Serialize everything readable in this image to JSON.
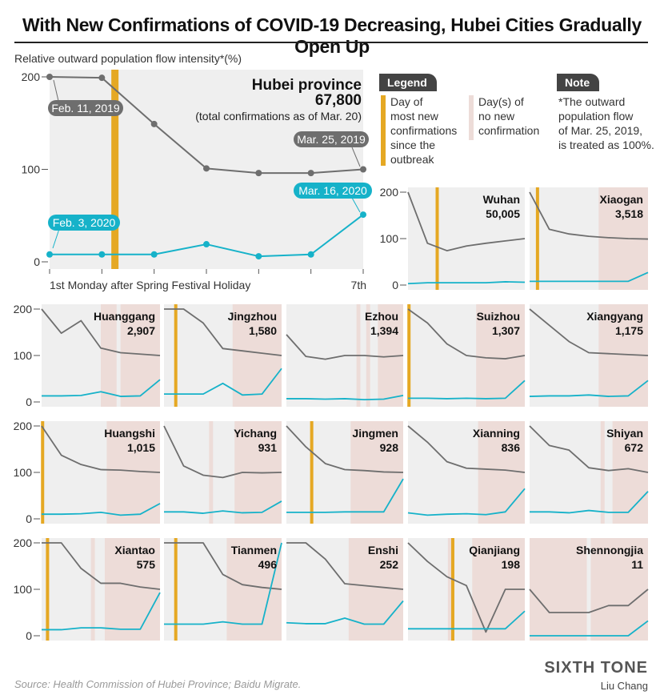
{
  "title": "With New Confirmations of COVID-19 Decreasing, Hubei Cities Gradually Open Up",
  "subtitle": "Relative outward population flow intensity*(%)",
  "legend": {
    "label": "Legend",
    "peak": "Day of\nmost new\nconfirmations\nsince the\noutbreak",
    "nonew": "Day(s) of\nno new\nconfirmation"
  },
  "note": {
    "label": "Note",
    "text": "*The outward\npopulation flow\nof Mar. 25, 2019,\nis treated as 100%."
  },
  "source": "Source: Health Commission of Hubei Province; Baidu Migrate.",
  "brand": "SIXTH TONE",
  "author": "Liu Chang",
  "colors": {
    "y2019": "#6e6e6e",
    "y2020": "#16b2c9",
    "peak": "#e5a823",
    "nonew": "#eddcd8",
    "panel": "#efefef"
  },
  "chart_data": [
    {
      "type": "line",
      "name": "Hubei province",
      "value": "67,800",
      "caption": "(total confirmations as of Mar. 20)",
      "x": [
        1,
        2,
        3,
        4,
        5,
        6,
        7
      ],
      "xlabel_start": "1st Monday after Spring Festival Holiday",
      "xlabel_end": "7th",
      "yticks": [
        "0",
        "100",
        "200"
      ],
      "ylim": [
        0,
        200
      ],
      "annotations": [
        {
          "text": "Feb. 11, 2019",
          "series": "2019",
          "x": 1
        },
        {
          "text": "Mar. 25, 2019",
          "series": "2019",
          "x": 7
        },
        {
          "text": "Feb. 3, 2020",
          "series": "2020",
          "x": 1
        },
        {
          "text": "Mar. 16, 2020",
          "series": "2020",
          "x": 7
        }
      ],
      "peak": 2.25,
      "nonew": [],
      "series": [
        {
          "values": [
            200,
            199,
            149,
            101,
            96,
            96,
            100
          ]
        },
        {
          "values": [
            8,
            8,
            8,
            19,
            6,
            8,
            51
          ]
        }
      ]
    },
    {
      "type": "line",
      "name": "Wuhan",
      "value": "50,005",
      "x": [
        1,
        2,
        3,
        4,
        5,
        6,
        7
      ],
      "yticks": [
        "0",
        "100",
        "200"
      ],
      "ylim": [
        0,
        200
      ],
      "peak": 2.5,
      "nonew": [],
      "series": [
        {
          "values": [
            200,
            90,
            74,
            84,
            90,
            95,
            100
          ]
        },
        {
          "values": [
            3,
            5,
            5,
            5,
            5,
            7,
            6
          ]
        }
      ]
    },
    {
      "type": "line",
      "name": "Xiaogan",
      "value": "3,518",
      "x": [
        1,
        2,
        3,
        4,
        5,
        6,
        7
      ],
      "ylim": [
        0,
        200
      ],
      "peak": 1.4,
      "nonew": [
        [
          4.5,
          7
        ]
      ],
      "series": [
        {
          "values": [
            200,
            120,
            110,
            105,
            102,
            100,
            99
          ]
        },
        {
          "values": [
            8,
            8,
            8,
            8,
            8,
            8,
            27
          ]
        }
      ]
    },
    {
      "type": "line",
      "name": "Huanggang",
      "value": "2,907",
      "x": [
        1,
        2,
        3,
        4,
        5,
        6,
        7
      ],
      "yticks": [
        "0",
        "100",
        "200"
      ],
      "ylim": [
        0,
        200
      ],
      "peak": null,
      "nonew": [
        [
          4,
          4.8
        ],
        [
          5,
          7
        ]
      ],
      "series": [
        {
          "values": [
            200,
            148,
            175,
            116,
            106,
            103,
            100
          ]
        },
        {
          "values": [
            13,
            13,
            14,
            22,
            12,
            13,
            48
          ]
        }
      ]
    },
    {
      "type": "line",
      "name": "Jingzhou",
      "value": "1,580",
      "x": [
        1,
        2,
        3,
        4,
        5,
        6,
        7
      ],
      "ylim": [
        0,
        200
      ],
      "peak": 1.6,
      "nonew": [
        [
          4.5,
          7
        ]
      ],
      "series": [
        {
          "values": [
            200,
            200,
            170,
            115,
            110,
            105,
            100
          ]
        },
        {
          "values": [
            17,
            17,
            17,
            40,
            15,
            17,
            72
          ]
        }
      ]
    },
    {
      "type": "line",
      "name": "Ezhou",
      "value": "1,394",
      "x": [
        1,
        2,
        3,
        4,
        5,
        6,
        7
      ],
      "ylim": [
        0,
        200
      ],
      "peak": null,
      "nonew": [
        [
          4.6,
          4.8
        ],
        [
          5.1,
          5.3
        ],
        [
          5.7,
          7
        ]
      ],
      "series": [
        {
          "values": [
            145,
            98,
            92,
            100,
            100,
            97,
            100
          ]
        },
        {
          "values": [
            7,
            7,
            6,
            7,
            5,
            6,
            14
          ]
        }
      ]
    },
    {
      "type": "line",
      "name": "Suizhou",
      "value": "1,307",
      "x": [
        1,
        2,
        3,
        4,
        5,
        6,
        7
      ],
      "ylim": [
        0,
        200
      ],
      "peak": 1.05,
      "nonew": [
        [
          4.5,
          7
        ]
      ],
      "series": [
        {
          "values": [
            200,
            170,
            125,
            100,
            95,
            93,
            100
          ]
        },
        {
          "values": [
            8,
            8,
            7,
            8,
            7,
            8,
            46
          ]
        }
      ]
    },
    {
      "type": "line",
      "name": "Xiangyang",
      "value": "1,175",
      "x": [
        1,
        2,
        3,
        4,
        5,
        6,
        7
      ],
      "ylim": [
        0,
        200
      ],
      "peak": null,
      "nonew": [
        [
          4.5,
          7
        ]
      ],
      "series": [
        {
          "values": [
            200,
            165,
            130,
            106,
            104,
            102,
            100
          ]
        },
        {
          "values": [
            12,
            13,
            13,
            15,
            12,
            13,
            46
          ]
        }
      ]
    },
    {
      "type": "line",
      "name": "Huangshi",
      "value": "1,015",
      "x": [
        1,
        2,
        3,
        4,
        5,
        6,
        7
      ],
      "yticks": [
        "0",
        "100",
        "200"
      ],
      "ylim": [
        0,
        200
      ],
      "peak": 1.05,
      "nonew": [
        [
          4.3,
          7
        ]
      ],
      "series": [
        {
          "values": [
            200,
            137,
            117,
            106,
            105,
            102,
            100
          ]
        },
        {
          "values": [
            10,
            10,
            11,
            14,
            8,
            10,
            33
          ]
        }
      ]
    },
    {
      "type": "line",
      "name": "Yichang",
      "value": "931",
      "x": [
        1,
        2,
        3,
        4,
        5,
        6,
        7
      ],
      "ylim": [
        0,
        200
      ],
      "peak": null,
      "nonew": [
        [
          3.3,
          3.5
        ],
        [
          4.6,
          7
        ]
      ],
      "series": [
        {
          "values": [
            200,
            114,
            94,
            89,
            100,
            99,
            100
          ]
        },
        {
          "values": [
            15,
            15,
            12,
            17,
            13,
            14,
            38
          ]
        }
      ]
    },
    {
      "type": "line",
      "name": "Jingmen",
      "value": "928",
      "x": [
        1,
        2,
        3,
        4,
        5,
        6,
        7
      ],
      "ylim": [
        0,
        200
      ],
      "peak": 2.3,
      "nonew": [
        [
          4.3,
          7
        ]
      ],
      "series": [
        {
          "values": [
            200,
            155,
            119,
            106,
            104,
            101,
            100
          ]
        },
        {
          "values": [
            14,
            14,
            14,
            15,
            15,
            15,
            86
          ]
        }
      ]
    },
    {
      "type": "line",
      "name": "Xianning",
      "value": "836",
      "x": [
        1,
        2,
        3,
        4,
        5,
        6,
        7
      ],
      "ylim": [
        0,
        200
      ],
      "peak": null,
      "nonew": [
        [
          4.6,
          7
        ]
      ],
      "series": [
        {
          "values": [
            200,
            165,
            123,
            109,
            107,
            105,
            100
          ]
        },
        {
          "values": [
            13,
            8,
            10,
            11,
            9,
            15,
            65
          ]
        }
      ]
    },
    {
      "type": "line",
      "name": "Shiyan",
      "value": "672",
      "x": [
        1,
        2,
        3,
        4,
        5,
        6,
        7
      ],
      "ylim": [
        0,
        200
      ],
      "peak": null,
      "nonew": [
        [
          4.6,
          4.8
        ],
        [
          5.2,
          7
        ]
      ],
      "series": [
        {
          "values": [
            200,
            158,
            148,
            110,
            104,
            108,
            100
          ]
        },
        {
          "values": [
            15,
            15,
            13,
            18,
            14,
            14,
            59
          ]
        }
      ]
    },
    {
      "type": "line",
      "name": "Xiantao",
      "value": "575",
      "x": [
        1,
        2,
        3,
        4,
        5,
        6,
        7
      ],
      "yticks": [
        "0",
        "100",
        "200"
      ],
      "ylim": [
        0,
        200
      ],
      "peak": 1.3,
      "nonew": [
        [
          3.5,
          3.7
        ],
        [
          4.2,
          7
        ]
      ],
      "series": [
        {
          "values": [
            200,
            200,
            145,
            113,
            113,
            105,
            100
          ]
        },
        {
          "values": [
            13,
            13,
            17,
            17,
            14,
            14,
            93
          ]
        }
      ]
    },
    {
      "type": "line",
      "name": "Tianmen",
      "value": "496",
      "x": [
        1,
        2,
        3,
        4,
        5,
        6,
        7
      ],
      "ylim": [
        0,
        200
      ],
      "peak": 1.6,
      "nonew": [
        [
          4.2,
          7
        ]
      ],
      "series": [
        {
          "values": [
            200,
            200,
            200,
            132,
            110,
            104,
            100
          ]
        },
        {
          "values": [
            25,
            25,
            25,
            30,
            25,
            25,
            200
          ]
        }
      ]
    },
    {
      "type": "line",
      "name": "Enshi",
      "value": "252",
      "x": [
        1,
        2,
        3,
        4,
        5,
        6,
        7
      ],
      "ylim": [
        0,
        200
      ],
      "peak": null,
      "nonew": [
        [
          4.2,
          7
        ]
      ],
      "series": [
        {
          "values": [
            200,
            200,
            165,
            112,
            108,
            104,
            100
          ]
        },
        {
          "values": [
            28,
            26,
            26,
            38,
            25,
            25,
            75
          ]
        }
      ]
    },
    {
      "type": "line",
      "name": "Qianjiang",
      "value": "198",
      "x": [
        1,
        2,
        3,
        4,
        5,
        6,
        7
      ],
      "ylim": [
        0,
        200
      ],
      "peak": 3.3,
      "nonew": [
        [
          3.05,
          3.25
        ],
        [
          4.3,
          7
        ]
      ],
      "series": [
        {
          "values": [
            200,
            160,
            127,
            108,
            8,
            100,
            100
          ]
        },
        {
          "values": [
            15,
            15,
            15,
            15,
            15,
            15,
            53
          ]
        }
      ]
    },
    {
      "type": "line",
      "name": "Shennongjia",
      "value": "11",
      "x": [
        1,
        2,
        3,
        4,
        5,
        6,
        7
      ],
      "ylim": [
        0,
        200
      ],
      "peak": null,
      "nonew": [
        [
          1,
          3.9
        ],
        [
          4.1,
          7
        ]
      ],
      "series": [
        {
          "values": [
            100,
            50,
            50,
            50,
            65,
            65,
            100
          ]
        },
        {
          "values": [
            0,
            0,
            0,
            0,
            0,
            0,
            32
          ]
        }
      ]
    }
  ]
}
